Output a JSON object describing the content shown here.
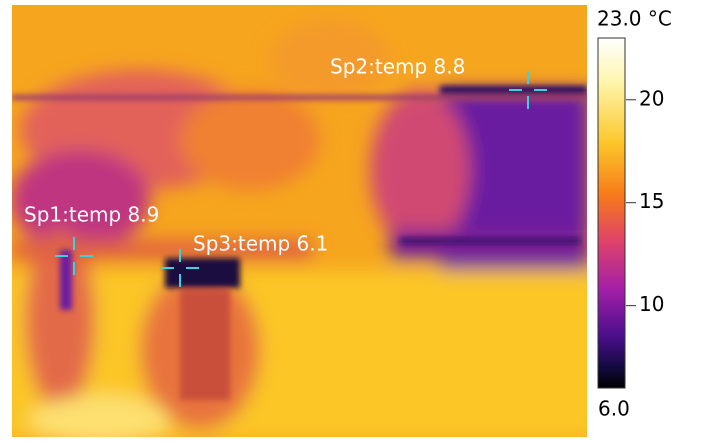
{
  "image": {
    "spots": [
      {
        "label": "Sp1:temp 8.9"
      },
      {
        "label": "Sp2:temp 8.8"
      },
      {
        "label": "Sp3:temp 6.1"
      }
    ]
  },
  "scale": {
    "max": {
      "value": 23.0,
      "label": "23.0 °C"
    },
    "min": {
      "value": 6.0,
      "label": "6.0"
    },
    "ticks": [
      20,
      15,
      10
    ]
  }
}
